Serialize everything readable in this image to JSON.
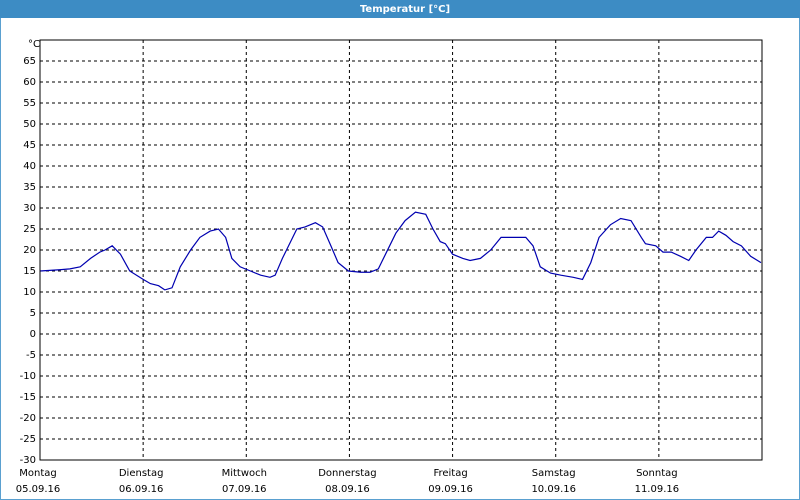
{
  "chart_data": {
    "type": "line",
    "title": "Temperatur [°C]",
    "y_label": "°C",
    "x": [
      0,
      0.19,
      0.29,
      0.39,
      0.49,
      0.58,
      0.63,
      0.7,
      0.78,
      0.87,
      1.0,
      1.07,
      1.15,
      1.21,
      1.28,
      1.36,
      1.46,
      1.55,
      1.65,
      1.73,
      1.8,
      1.86,
      1.94,
      2.04,
      2.14,
      2.23,
      2.28,
      2.35,
      2.43,
      2.49,
      2.57,
      2.67,
      2.74,
      2.82,
      2.89,
      2.99,
      3.11,
      3.2,
      3.28,
      3.35,
      3.45,
      3.54,
      3.64,
      3.74,
      3.81,
      3.88,
      3.93,
      4.0,
      4.1,
      4.17,
      4.27,
      4.37,
      4.47,
      4.61,
      4.71,
      4.78,
      4.85,
      4.95,
      5.05,
      5.17,
      5.26,
      5.34,
      5.42,
      5.53,
      5.63,
      5.73,
      5.83,
      5.87,
      5.97,
      6.04,
      6.12,
      6.21,
      6.29,
      6.36,
      6.46,
      6.52,
      6.58,
      6.65,
      6.72,
      6.8,
      6.89,
      6.99
    ],
    "values": [
      15,
      15.3,
      15.5,
      16,
      18,
      19.5,
      20,
      21,
      19,
      15,
      13,
      12,
      11.5,
      10.5,
      11,
      16,
      20,
      23,
      24.5,
      25,
      23,
      18,
      16,
      15,
      14,
      13.5,
      14,
      18,
      22,
      25,
      25.5,
      26.5,
      25.5,
      21,
      17,
      15,
      14.7,
      14.7,
      15.5,
      19,
      24,
      27,
      29,
      28.5,
      25,
      22,
      21.5,
      19,
      18,
      17.5,
      18,
      20,
      23,
      23,
      23,
      21,
      16,
      14.5,
      14,
      13.5,
      13,
      17,
      23,
      26,
      27.5,
      27,
      23,
      21.5,
      21,
      19.5,
      19.5,
      18.5,
      17.5,
      20,
      23,
      23,
      24.5,
      23.5,
      22,
      21,
      18.5,
      17
    ],
    "color": "#0000b0",
    "xlim": [
      0,
      7
    ],
    "xticks": [
      {
        "value": 0,
        "label": "Montag",
        "date": "05.09.16"
      },
      {
        "value": 1,
        "label": "Dienstag",
        "date": "06.09.16"
      },
      {
        "value": 2,
        "label": "Mittwoch",
        "date": "07.09.16"
      },
      {
        "value": 3,
        "label": "Donnerstag",
        "date": "08.09.16"
      },
      {
        "value": 4,
        "label": "Freitag",
        "date": "09.09.16"
      },
      {
        "value": 5,
        "label": "Samstag",
        "date": "10.09.16"
      },
      {
        "value": 6,
        "label": "Sonntag",
        "date": "11.09.16"
      }
    ],
    "ylim": [
      -30,
      70
    ],
    "yticks": [
      -30,
      -25,
      -20,
      -15,
      -10,
      -5,
      0,
      5,
      10,
      15,
      20,
      25,
      30,
      35,
      40,
      45,
      50,
      55,
      60,
      65
    ],
    "grid": true
  }
}
